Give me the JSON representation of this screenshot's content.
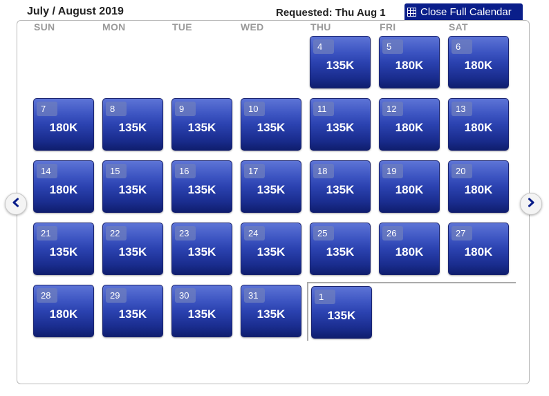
{
  "header": {
    "title": "July / August 2019",
    "requested": "Requested: Thu Aug 1",
    "close_label": "Close Full Calendar"
  },
  "day_headers": [
    "SUN",
    "MON",
    "TUE",
    "WED",
    "THU",
    "FRI",
    "SAT"
  ],
  "days": [
    {
      "day": "4",
      "price": "135K"
    },
    {
      "day": "5",
      "price": "180K"
    },
    {
      "day": "6",
      "price": "180K"
    },
    {
      "day": "7",
      "price": "180K"
    },
    {
      "day": "8",
      "price": "135K"
    },
    {
      "day": "9",
      "price": "135K"
    },
    {
      "day": "10",
      "price": "135K"
    },
    {
      "day": "11",
      "price": "135K"
    },
    {
      "day": "12",
      "price": "180K"
    },
    {
      "day": "13",
      "price": "180K"
    },
    {
      "day": "14",
      "price": "180K"
    },
    {
      "day": "15",
      "price": "135K"
    },
    {
      "day": "16",
      "price": "135K"
    },
    {
      "day": "17",
      "price": "135K"
    },
    {
      "day": "18",
      "price": "135K"
    },
    {
      "day": "19",
      "price": "180K"
    },
    {
      "day": "20",
      "price": "180K"
    },
    {
      "day": "21",
      "price": "135K"
    },
    {
      "day": "22",
      "price": "135K"
    },
    {
      "day": "23",
      "price": "135K"
    },
    {
      "day": "24",
      "price": "135K"
    },
    {
      "day": "25",
      "price": "135K"
    },
    {
      "day": "26",
      "price": "180K"
    },
    {
      "day": "27",
      "price": "180K"
    },
    {
      "day": "28",
      "price": "180K"
    },
    {
      "day": "29",
      "price": "135K"
    },
    {
      "day": "30",
      "price": "135K"
    },
    {
      "day": "31",
      "price": "135K"
    },
    {
      "day": "1",
      "price": "135K"
    }
  ],
  "icons": {
    "close": "calendar-grid-icon",
    "prev": "chevron-left-icon",
    "next": "chevron-right-icon"
  },
  "colors": {
    "accent": "#0a1e8a",
    "cell_top": "#5d74d6",
    "cell_bottom": "#0f1e6e"
  }
}
